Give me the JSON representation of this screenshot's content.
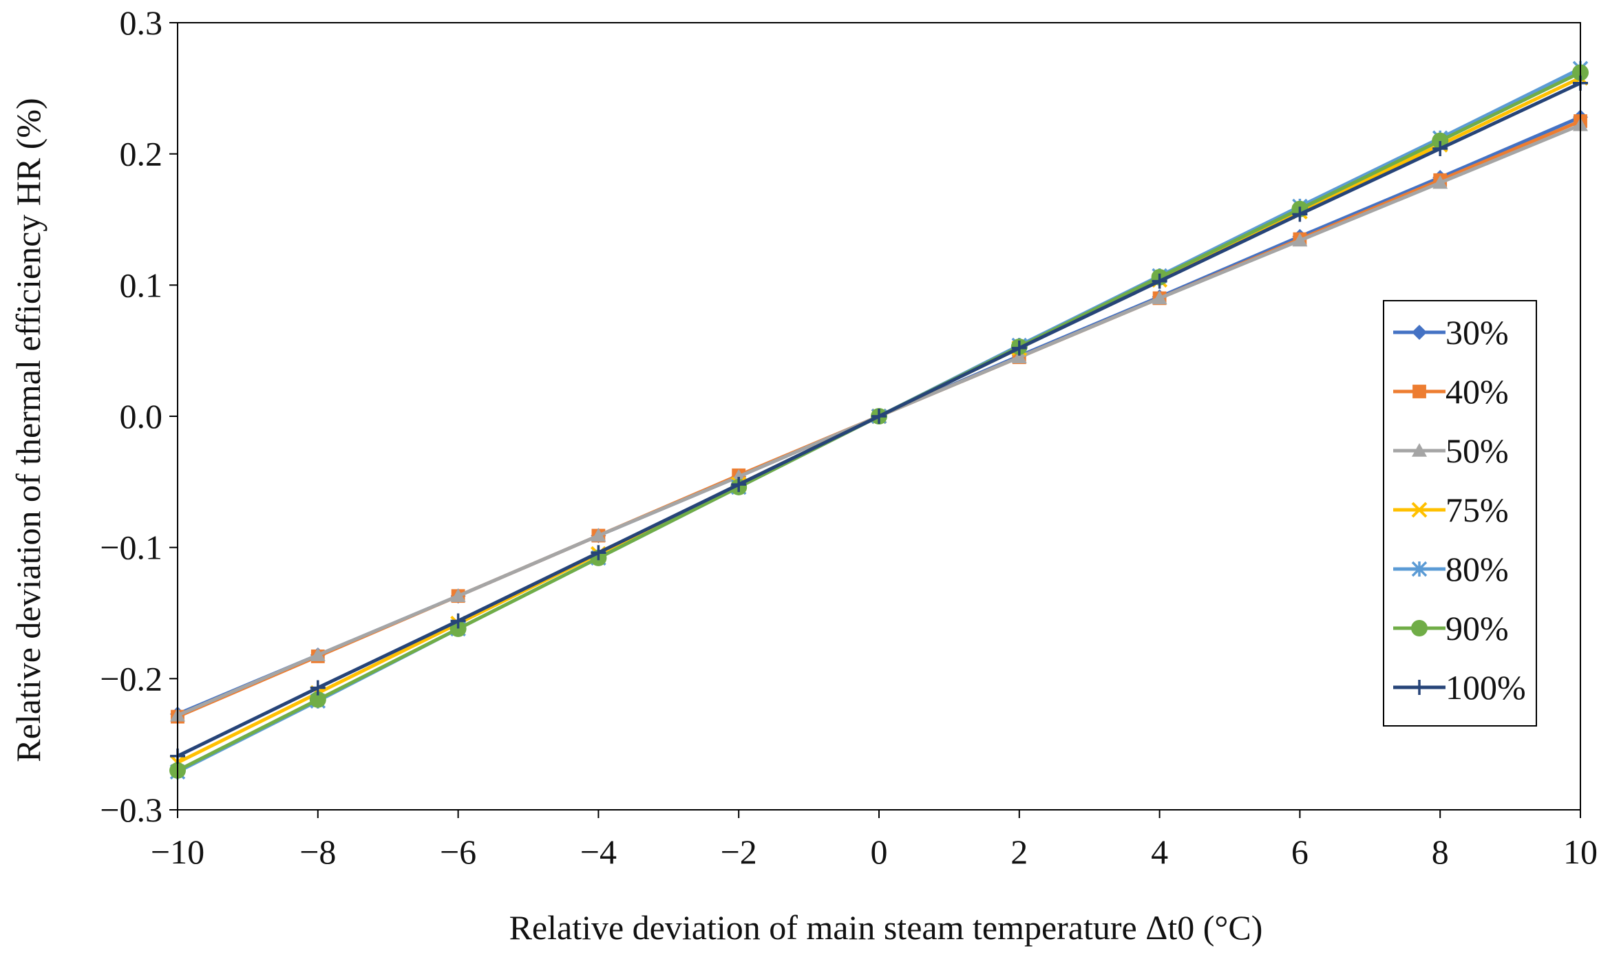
{
  "chart_data": {
    "type": "line",
    "title": "",
    "xlabel": "Relative deviation of main steam temperature Δt0 (°C)",
    "ylabel": "Relative deviation of thermal efficiency HR (%)",
    "xlim": [
      -10,
      10
    ],
    "ylim": [
      -0.3,
      0.3
    ],
    "x": [
      -10,
      -8,
      -6,
      -4,
      -2,
      0,
      2,
      4,
      6,
      8,
      10
    ],
    "x_ticks": [
      -10,
      -8,
      -6,
      -4,
      -2,
      0,
      2,
      4,
      6,
      8,
      10
    ],
    "x_tick_labels": [
      "−10",
      "−8",
      "−6",
      "−4",
      "−2",
      "0",
      "2",
      "4",
      "6",
      "8",
      "10"
    ],
    "y_ticks": [
      -0.3,
      -0.2,
      -0.1,
      0.0,
      0.1,
      0.2,
      0.3
    ],
    "y_tick_labels": [
      "−0.3",
      "−0.2",
      "−0.1",
      "0.0",
      "0.1",
      "0.2",
      "0.3"
    ],
    "grid": false,
    "legend_position": "right",
    "series": [
      {
        "name": "30%",
        "color": "#4472C4",
        "marker": "diamond",
        "values": [
          -0.227,
          -0.182,
          -0.137,
          -0.091,
          -0.046,
          0,
          0.046,
          0.091,
          0.137,
          0.182,
          0.228
        ]
      },
      {
        "name": "40%",
        "color": "#ED7D31",
        "marker": "square",
        "values": [
          -0.229,
          -0.183,
          -0.137,
          -0.091,
          -0.045,
          0,
          0.045,
          0.09,
          0.135,
          0.18,
          0.225
        ]
      },
      {
        "name": "50%",
        "color": "#A5A5A5",
        "marker": "triangle",
        "values": [
          -0.228,
          -0.182,
          -0.137,
          -0.091,
          -0.046,
          0,
          0.045,
          0.09,
          0.134,
          0.178,
          0.222
        ]
      },
      {
        "name": "75%",
        "color": "#FFC000",
        "marker": "x",
        "values": [
          -0.264,
          -0.211,
          -0.158,
          -0.105,
          -0.052,
          0,
          0.052,
          0.104,
          0.156,
          0.207,
          0.258
        ]
      },
      {
        "name": "80%",
        "color": "#5B9BD5",
        "marker": "asterisk",
        "values": [
          -0.271,
          -0.217,
          -0.162,
          -0.108,
          -0.054,
          0,
          0.054,
          0.107,
          0.16,
          0.212,
          0.265
        ]
      },
      {
        "name": "90%",
        "color": "#70AD47",
        "marker": "circle",
        "values": [
          -0.27,
          -0.216,
          -0.162,
          -0.108,
          -0.054,
          0,
          0.053,
          0.106,
          0.158,
          0.21,
          0.262
        ]
      },
      {
        "name": "100%",
        "color": "#264478",
        "marker": "plus",
        "values": [
          -0.259,
          -0.207,
          -0.156,
          -0.104,
          -0.052,
          0,
          0.052,
          0.103,
          0.154,
          0.204,
          0.254
        ]
      }
    ]
  }
}
